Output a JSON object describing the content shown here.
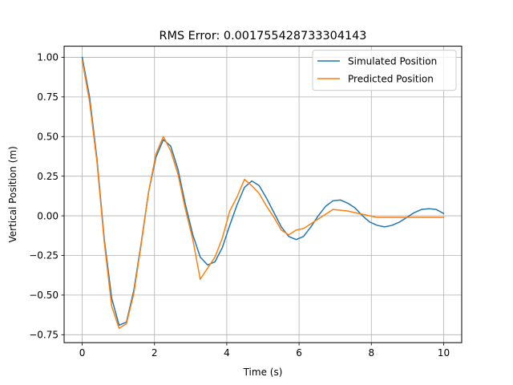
{
  "chart_data": {
    "type": "line",
    "title": "RMS Error: 0.001755428733304143",
    "xlabel": "Time (s)",
    "ylabel": "Vertical Position (m)",
    "xlim": [
      -0.5,
      10.5
    ],
    "ylim": [
      -0.8,
      1.07
    ],
    "xticks": [
      0,
      2,
      4,
      6,
      8,
      10
    ],
    "xtick_labels": [
      "0",
      "2",
      "4",
      "6",
      "8",
      "10"
    ],
    "yticks": [
      -0.75,
      -0.5,
      -0.25,
      0.0,
      0.25,
      0.5,
      0.75,
      1.0
    ],
    "ytick_labels": [
      "−0.75",
      "−0.50",
      "−0.25",
      "0.00",
      "0.25",
      "0.50",
      "0.75",
      "1.00"
    ],
    "grid": true,
    "legend_position": "top-right",
    "x": [
      0.0,
      0.2041,
      0.4082,
      0.6122,
      0.8163,
      1.0204,
      1.2245,
      1.4286,
      1.6327,
      1.8367,
      2.0408,
      2.2449,
      2.449,
      2.6531,
      2.8571,
      3.0612,
      3.2653,
      3.4694,
      3.6735,
      3.8776,
      4.0816,
      4.2857,
      4.4898,
      4.6939,
      4.898,
      5.102,
      5.3061,
      5.5102,
      5.7143,
      5.9184,
      6.1224,
      6.3265,
      6.5306,
      6.7347,
      6.9388,
      7.1429,
      7.3469,
      7.551,
      7.7551,
      7.9592,
      8.1633,
      8.3673,
      8.5714,
      8.7755,
      8.9796,
      9.1837,
      9.3878,
      9.5918,
      9.7959,
      10.0
    ],
    "series": [
      {
        "name": "Simulated Position",
        "color": "#1f77b4",
        "values": [
          1.0,
          0.75,
          0.36,
          -0.15,
          -0.52,
          -0.69,
          -0.67,
          -0.47,
          -0.17,
          0.15,
          0.37,
          0.48,
          0.44,
          0.29,
          0.07,
          -0.12,
          -0.26,
          -0.31,
          -0.29,
          -0.2,
          -0.06,
          0.07,
          0.18,
          0.22,
          0.19,
          0.11,
          0.02,
          -0.07,
          -0.13,
          -0.15,
          -0.13,
          -0.07,
          0.0,
          0.06,
          0.095,
          0.1,
          0.08,
          0.05,
          0.0,
          -0.04,
          -0.06,
          -0.07,
          -0.06,
          -0.04,
          -0.01,
          0.02,
          0.04,
          0.045,
          0.04,
          0.015
        ]
      },
      {
        "name": "Predicted Position",
        "color": "#ff7f0e",
        "values": [
          0.98,
          0.72,
          0.34,
          -0.17,
          -0.57,
          -0.71,
          -0.68,
          -0.49,
          -0.18,
          0.15,
          0.39,
          0.5,
          0.41,
          0.26,
          0.04,
          -0.15,
          -0.4,
          -0.33,
          -0.26,
          -0.14,
          0.03,
          0.12,
          0.23,
          0.19,
          0.14,
          0.06,
          -0.01,
          -0.09,
          -0.12,
          -0.09,
          -0.08,
          -0.05,
          -0.02,
          0.01,
          0.04,
          0.035,
          0.03,
          0.02,
          0.01,
          0.0,
          -0.01,
          -0.01,
          -0.01,
          -0.01,
          -0.01,
          -0.01,
          -0.01,
          -0.01,
          -0.01,
          -0.01
        ]
      }
    ]
  }
}
